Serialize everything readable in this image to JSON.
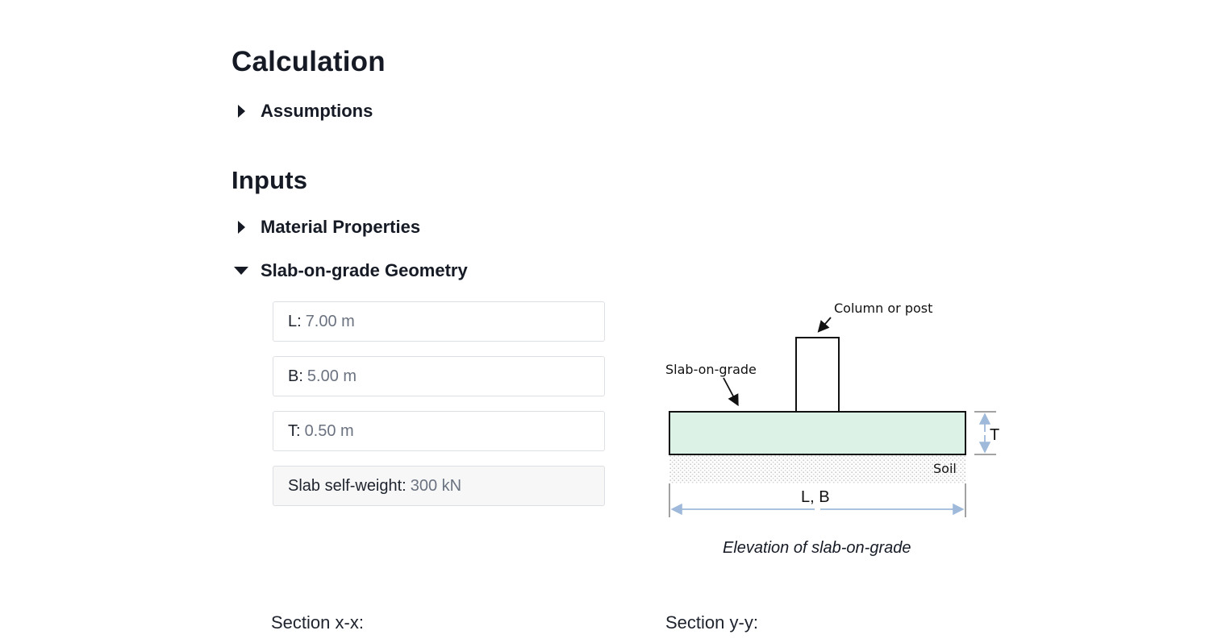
{
  "headings": {
    "calculation": "Calculation",
    "inputs": "Inputs"
  },
  "sections": {
    "assumptions": {
      "label": "Assumptions",
      "expanded": false
    },
    "material_properties": {
      "label": "Material Properties",
      "expanded": false
    },
    "slab_geometry": {
      "label": "Slab-on-grade Geometry",
      "expanded": true
    }
  },
  "fields": {
    "L": {
      "label": "L:",
      "value": "7.00 m"
    },
    "B": {
      "label": "B:",
      "value": "5.00 m"
    },
    "T": {
      "label": "T:",
      "value": "0.50 m"
    },
    "self_weight": {
      "label": "Slab self-weight:",
      "value": "300 kN"
    }
  },
  "diagram": {
    "column_label": "Column or post",
    "slab_label": "Slab-on-grade",
    "thickness_label": "T",
    "soil_label": "Soil",
    "span_label": "L, B",
    "caption": "Elevation of slab-on-grade",
    "colors": {
      "slab_fill": "#dcf2e6",
      "dimension": "#9fb9da",
      "soil": "#c8c8c8"
    }
  },
  "sections_below": {
    "x": "Section x-x:",
    "y": "Section y-y:"
  }
}
